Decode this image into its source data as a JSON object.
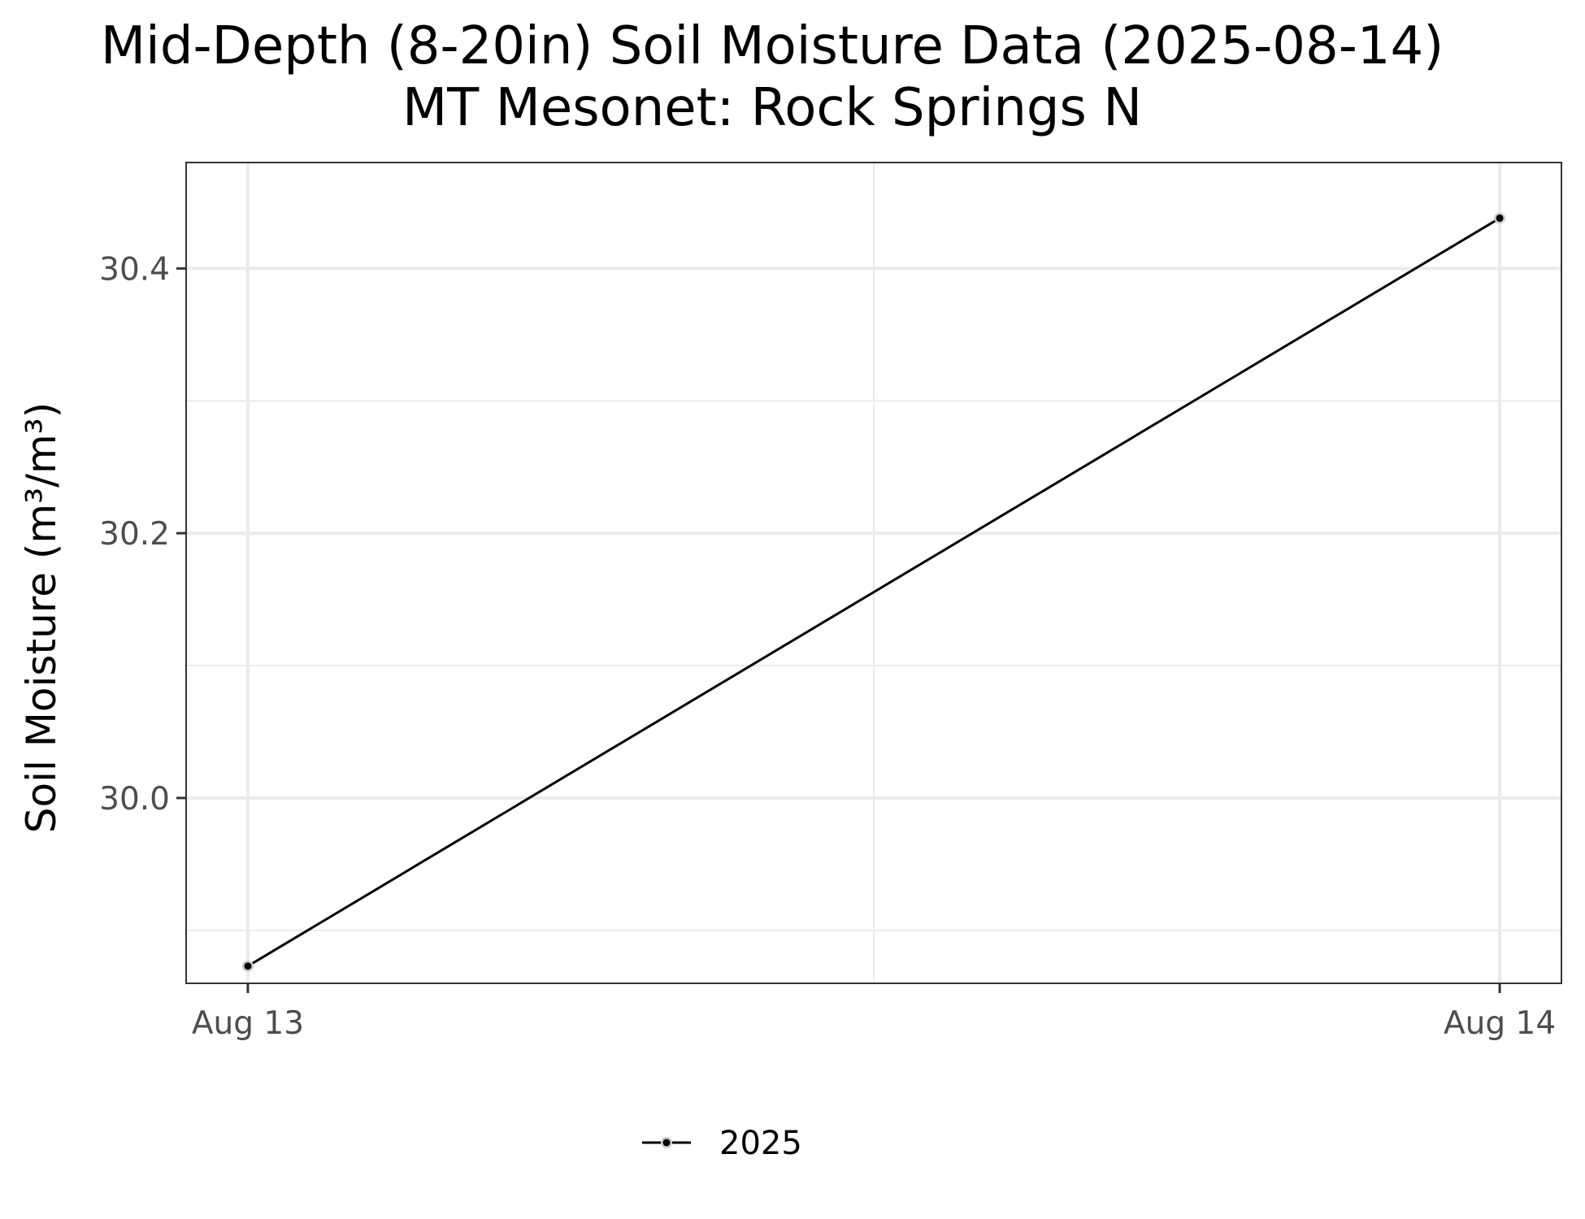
{
  "chart_data": {
    "type": "line",
    "title": "Mid-Depth (8-20in) Soil Moisture Data (2025-08-14)",
    "subtitle": "MT Mesonet: Rock Springs N",
    "xlabel": "",
    "ylabel": "Soil Moisture (m³/m³)",
    "x_ticks": [
      "Aug 13",
      "Aug 14"
    ],
    "y_ticks": [
      "30.0",
      "30.2",
      "30.4"
    ],
    "xlim": [
      "2025-08-12T22:49",
      "2025-08-14T01:11"
    ],
    "ylim": [
      29.86,
      30.48
    ],
    "grid": true,
    "legend_position": "bottom",
    "series": [
      {
        "name": "2025",
        "color": "#000000",
        "x": [
          "2025-08-13",
          "2025-08-14"
        ],
        "values": [
          29.873,
          30.438
        ]
      }
    ]
  }
}
